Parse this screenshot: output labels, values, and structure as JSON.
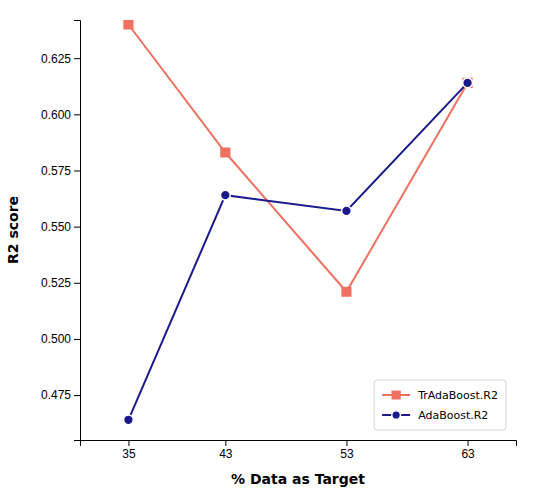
{
  "chart_data": {
    "type": "line",
    "x": [
      35,
      43,
      53,
      63
    ],
    "xlabel": "% Data as Target",
    "ylabel": "R2 score",
    "xlim": [
      31,
      67
    ],
    "ylim": [
      0.455,
      0.642
    ],
    "xticks": [
      35,
      43,
      53,
      63
    ],
    "yticks": [
      0.475,
      {
        "value": 0.5,
        "label": "0.500"
      },
      0.525,
      {
        "value": 0.55,
        "label": "0.550"
      },
      0.575,
      {
        "value": 0.6,
        "label": "0.600"
      },
      0.625
    ],
    "grid": false,
    "legend": "lower right",
    "series": [
      {
        "name": "TrAdaBoost.R2",
        "color": "#F07060",
        "values": [
          0.64,
          0.583,
          0.521,
          0.614
        ],
        "marker": "square",
        "line_style": "solid"
      },
      {
        "name": "AdaBoost.R2",
        "color": "#1a1a8c",
        "values": [
          0.464,
          0.564,
          0.557,
          0.614
        ],
        "marker": "circle",
        "line_style": "solid"
      }
    ]
  }
}
